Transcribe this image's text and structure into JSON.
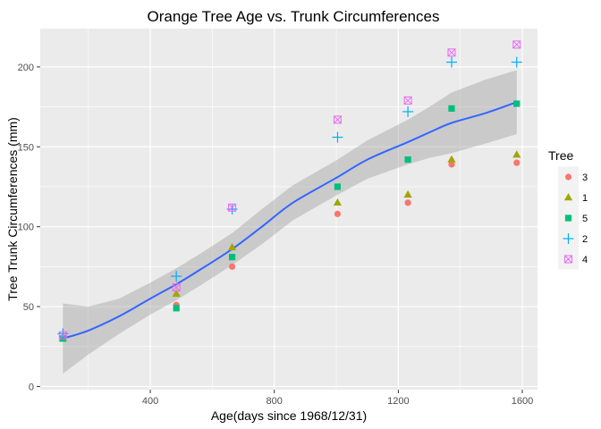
{
  "chart_data": {
    "type": "scatter",
    "title": "Orange Tree Age vs. Trunk Circumferences",
    "xlabel": "Age(days since 1968/12/31)",
    "ylabel": "Tree Trunk Circumferences (mm)",
    "xlim": [
      45,
      1649
    ],
    "ylim": [
      -2,
      224
    ],
    "x_ticks": [
      400,
      800,
      1200,
      1600
    ],
    "y_ticks": [
      0,
      50,
      100,
      150,
      200
    ],
    "grid": true,
    "legend": {
      "title": "Tree",
      "position": "right"
    },
    "x": [
      118,
      484,
      664,
      1004,
      1231,
      1372,
      1582
    ],
    "series": [
      {
        "name": "3",
        "color": "#F8766D",
        "marker": "circle",
        "values": [
          30,
          51,
          75,
          108,
          115,
          139,
          140
        ]
      },
      {
        "name": "1",
        "color": "#A3A500",
        "marker": "triangle",
        "values": [
          30,
          58,
          87,
          115,
          120,
          142,
          145
        ]
      },
      {
        "name": "5",
        "color": "#00BF7D",
        "marker": "square",
        "values": [
          30,
          49,
          81,
          125,
          142,
          174,
          177
        ]
      },
      {
        "name": "2",
        "color": "#00B0F6",
        "marker": "plus",
        "values": [
          33,
          69,
          111,
          156,
          172,
          203,
          203
        ]
      },
      {
        "name": "4",
        "color": "#E76BF3",
        "marker": "square-cross",
        "values": [
          32,
          62,
          112,
          167,
          179,
          209,
          214
        ]
      }
    ],
    "smooth": {
      "color": "#3366FF",
      "band_color": "#999999",
      "x": [
        118,
        200,
        300,
        400,
        484,
        560,
        664,
        760,
        860,
        1004,
        1100,
        1231,
        1300,
        1372,
        1480,
        1582
      ],
      "y": [
        30,
        35,
        44,
        55,
        64,
        73,
        86,
        100,
        115,
        131,
        142,
        153,
        159,
        165,
        171,
        178
      ],
      "lower": [
        8,
        20,
        33,
        45,
        54,
        63,
        76,
        89,
        104,
        120,
        130,
        139,
        143,
        146,
        152,
        158
      ],
      "upper": [
        52,
        50,
        55,
        65,
        74,
        83,
        96,
        111,
        126,
        142,
        154,
        167,
        175,
        184,
        192,
        198
      ]
    }
  }
}
